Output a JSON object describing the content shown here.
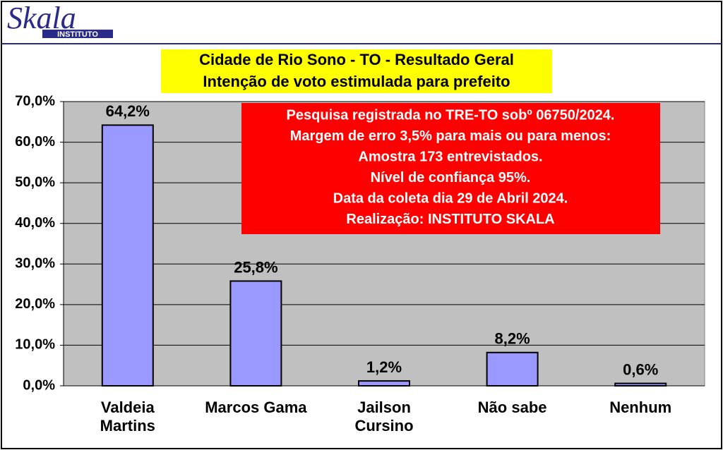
{
  "header": {
    "logo": "Skala",
    "logo_subtitle": "INSTITUTO"
  },
  "chart_data": {
    "type": "bar",
    "title": [
      "Cidade de Rio Sono - TO - Resultado Geral",
      "Intenção de voto estimulada para prefeito"
    ],
    "categories": [
      "Valdeia Martins",
      "Marcos Gama",
      "Jailson Cursino",
      "Não sabe",
      "Nenhum"
    ],
    "values": [
      64.2,
      25.8,
      1.2,
      8.2,
      0.6
    ],
    "value_labels": [
      "64,2%",
      "25,8%",
      "1,2%",
      "8,2%",
      "0,6%"
    ],
    "color": "#9999ff",
    "ylim": [
      0,
      70
    ],
    "yticks": [
      {
        "value": 0,
        "label": "0,0%"
      },
      {
        "value": 10,
        "label": "10,0%"
      },
      {
        "value": 20,
        "label": "20,0%"
      },
      {
        "value": 30,
        "label": "30,0%"
      },
      {
        "value": 40,
        "label": "40,0%"
      },
      {
        "value": 50,
        "label": "50,0%"
      },
      {
        "value": 60,
        "label": "60,0%"
      },
      {
        "value": 70,
        "label": "70,0%"
      }
    ],
    "grid": true,
    "annotation": [
      "Pesquisa registrada no TRE-TO sobº 06750/2024.",
      "Margem de erro 3,5% para mais ou para menos:",
      "Amostra 173 entrevistados.",
      "Nível de confiança 95%.",
      "Data da coleta dia 29 de Abril 2024.",
      "Realização: INSTITUTO SKALA"
    ]
  }
}
